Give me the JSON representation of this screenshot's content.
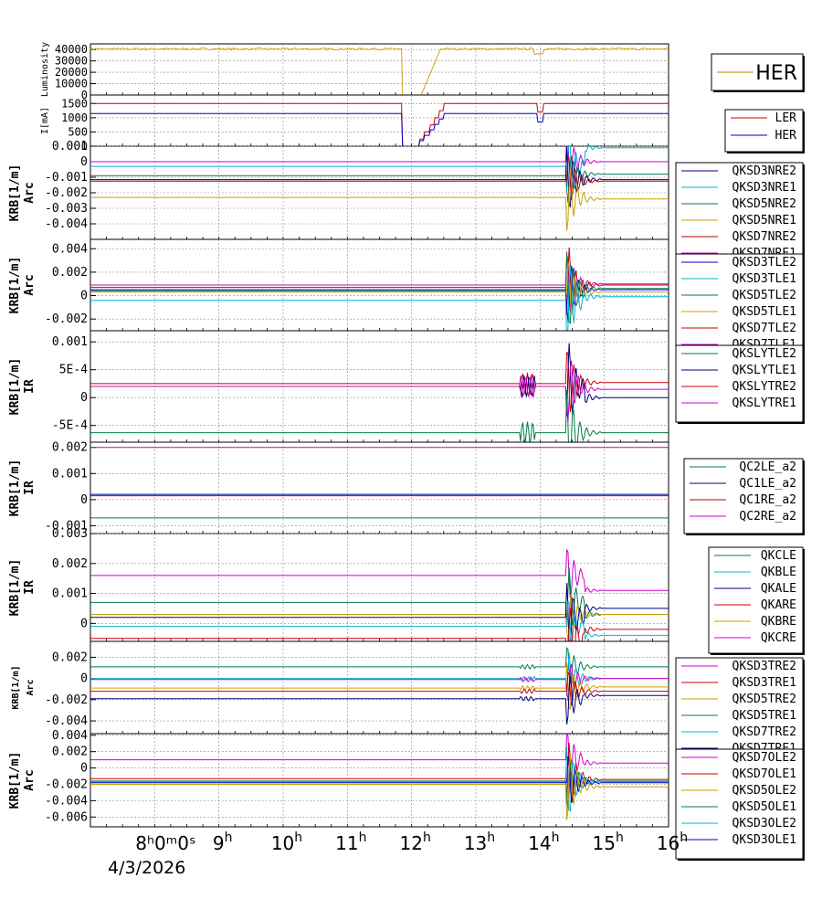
{
  "chart_data": {
    "type": "line",
    "x_axis": {
      "ticks": [
        {
          "h": "8",
          "label": "8ʰ0ᵐ0ˢ",
          "sup": "h"
        },
        {
          "h": "9",
          "label": "9",
          "sup": "h"
        },
        {
          "h": "10",
          "label": "10",
          "sup": "h"
        },
        {
          "h": "11",
          "label": "11",
          "sup": "h"
        },
        {
          "h": "12",
          "label": "12",
          "sup": "h"
        },
        {
          "h": "13",
          "label": "13",
          "sup": "h"
        },
        {
          "h": "14",
          "label": "14",
          "sup": "h"
        },
        {
          "h": "15",
          "label": "15",
          "sup": "h"
        },
        {
          "h": "16",
          "label": "16",
          "sup": "h"
        }
      ],
      "date": "4/3/2026",
      "range_hours": [
        7.0,
        16.0
      ]
    },
    "panels": [
      {
        "id": "luminosity",
        "ylabel": "Luminosity",
        "yticks": [
          "40000",
          "30000",
          "20000",
          "10000",
          "0"
        ],
        "ylim": [
          0,
          45000
        ],
        "legend": [
          {
            "name": "HER",
            "color": "#d4a017"
          }
        ],
        "series": [
          {
            "name": "HER",
            "color": "#d4a017",
            "pattern": "lumi",
            "base": 40500
          }
        ]
      },
      {
        "id": "current",
        "ylabel": "I[mA]",
        "yticks": [
          "1500",
          "1000",
          "500",
          "0"
        ],
        "ylim": [
          0,
          1800
        ],
        "legend": [
          {
            "name": "LER",
            "color": "#cc0000"
          },
          {
            "name": "HER",
            "color": "#0000cc"
          }
        ],
        "series": [
          {
            "name": "LER",
            "color": "#cc0000",
            "pattern": "current",
            "base": 1500
          },
          {
            "name": "HER",
            "color": "#0000cc",
            "pattern": "current",
            "base": 1150
          }
        ]
      },
      {
        "id": "arc1",
        "ylabel": "KRB[1/m]",
        "ylabel2": "Arc",
        "yticks": [
          "0.001",
          "0",
          "-0.001",
          "-0.002",
          "-0.003",
          "-0.004"
        ],
        "ylim": [
          -0.005,
          0.001
        ],
        "legend": [
          {
            "name": "QKSD3NRE2",
            "color": "#000080"
          },
          {
            "name": "QKSD3NRE1",
            "color": "#00b4d8"
          },
          {
            "name": "QKSD5NRE2",
            "color": "#007a4d"
          },
          {
            "name": "QKSD5NRE1",
            "color": "#c8a000"
          },
          {
            "name": "QKSD7NRE2",
            "color": "#b00000"
          },
          {
            "name": "QKSD7NRE1",
            "color": "#cc00cc"
          }
        ],
        "series": [
          {
            "color": "#cc00cc",
            "base": 0.0
          },
          {
            "color": "#00b4d8",
            "base": -0.0003
          },
          {
            "color": "#007a4d",
            "base": -0.0009
          },
          {
            "color": "#000080",
            "base": -0.00115
          },
          {
            "color": "#b00000",
            "base": -0.00125
          },
          {
            "color": "#c8a000",
            "base": -0.0023
          }
        ],
        "event": {
          "t": 14.45,
          "amp": 0.0022
        },
        "after_shift": [
          0.0,
          0.0012,
          0.0001,
          0.0,
          0.0,
          -0.0001
        ]
      },
      {
        "id": "arc2",
        "ylabel": "KRB[1/m]",
        "ylabel2": "Arc",
        "yticks": [
          "0.004",
          "0.002",
          "0",
          "-0.002"
        ],
        "ylim": [
          -0.003,
          0.0048
        ],
        "legend": [
          {
            "name": "QKSD3TLE2",
            "color": "#0000cc"
          },
          {
            "name": "QKSD3TLE1",
            "color": "#00b4d8"
          },
          {
            "name": "QKSD5TLE2",
            "color": "#007a4d"
          },
          {
            "name": "QKSD5TLE1",
            "color": "#c8a000"
          },
          {
            "name": "QKSD7TLE2",
            "color": "#cc0000"
          },
          {
            "name": "QKSD7TLE1",
            "color": "#cc00cc"
          }
        ],
        "series": [
          {
            "color": "#cc00cc",
            "base": 0.0009
          },
          {
            "color": "#cc0000",
            "base": 0.0007
          },
          {
            "color": "#0000cc",
            "base": 0.0005
          },
          {
            "color": "#007a4d",
            "base": 0.0004
          },
          {
            "color": "#c8a000",
            "base": 0.0003
          },
          {
            "color": "#00b4d8",
            "base": -0.0004
          }
        ],
        "event": {
          "t": 14.45,
          "amp": 0.0035
        },
        "after_shift": [
          0.0001,
          0.0002,
          0.0,
          0.0002,
          0.0,
          0.0003
        ]
      },
      {
        "id": "ir1",
        "ylabel": "KRB[1/m]",
        "ylabel2": "IR",
        "yticks": [
          "0.001",
          "5E-4",
          "0",
          "-5E-4"
        ],
        "ylim": [
          -0.0008,
          0.0012
        ],
        "legend": [
          {
            "name": "QKSLYTLE2",
            "color": "#007a4d"
          },
          {
            "name": "QKSLYTLE1",
            "color": "#000080"
          },
          {
            "name": "QKSLYTRE2",
            "color": "#cc0000"
          },
          {
            "name": "QKSLYTRE1",
            "color": "#cc00cc"
          }
        ],
        "series": [
          {
            "color": "#cc0000",
            "base": 0.00025
          },
          {
            "color": "#000080",
            "base": 0.0002
          },
          {
            "color": "#cc00cc",
            "base": 0.0002
          },
          {
            "color": "#007a4d",
            "base": -0.00063
          }
        ],
        "event": {
          "t": 14.45,
          "amp": 0.0008
        },
        "after_shift": [
          2e-05,
          -0.0002,
          -5e-05,
          0.0
        ],
        "pre_event": {
          "t": 13.8,
          "amp": 0.0002
        }
      },
      {
        "id": "ir2",
        "ylabel": "KRB[1/m]",
        "ylabel2": "IR",
        "yticks": [
          "0.002",
          "0.001",
          "0",
          "-0.001"
        ],
        "ylim": [
          -0.0013,
          0.0022
        ],
        "legend": [
          {
            "name": "QC2LE_a2",
            "color": "#007a4d"
          },
          {
            "name": "QC1LE_a2",
            "color": "#000080"
          },
          {
            "name": "QC1RE_a2",
            "color": "#b00000"
          },
          {
            "name": "QC2RE_a2",
            "color": "#cc00cc"
          }
        ],
        "series": [
          {
            "color": "#cc00cc",
            "base": 0.002
          },
          {
            "color": "#000080",
            "base": 0.0002
          },
          {
            "color": "#b00000",
            "base": 0.00015
          },
          {
            "color": "#007a4d",
            "base": -0.0007
          }
        ],
        "event": null
      },
      {
        "id": "ir3",
        "ylabel": "KRB[1/m]",
        "ylabel2": "IR",
        "yticks": [
          "0.003",
          "0.002",
          "0.001",
          "0"
        ],
        "ylim": [
          -0.0006,
          0.003
        ],
        "legend": [
          {
            "name": "QKCLE",
            "color": "#007a4d"
          },
          {
            "name": "QKBLE",
            "color": "#00b4d8"
          },
          {
            "name": "QKALE",
            "color": "#000080"
          },
          {
            "name": "QKARE",
            "color": "#cc0000"
          },
          {
            "name": "QKBRE",
            "color": "#c8a000"
          },
          {
            "name": "QKCRE",
            "color": "#cc00cc"
          }
        ],
        "series": [
          {
            "color": "#cc00cc",
            "base": 0.0016
          },
          {
            "color": "#007a4d",
            "base": 0.0007
          },
          {
            "color": "#c8a000",
            "base": 0.0003
          },
          {
            "color": "#000080",
            "base": 0.0002
          },
          {
            "color": "#00b4d8",
            "base": -0.0001
          },
          {
            "color": "#cc0000",
            "base": -0.0005
          }
        ],
        "event": {
          "t": 14.45,
          "amp": 0.0012
        },
        "after_shift": [
          -0.0005,
          -0.0004,
          0.0,
          0.0003,
          -0.0003,
          0.0003
        ]
      },
      {
        "id": "arc3",
        "ylabel": "KRB[1/m]",
        "ylabel2": "Arc",
        "yticks": [
          "0.002",
          "0",
          "-0.002",
          "-0.004"
        ],
        "ylim": [
          -0.0052,
          0.0035
        ],
        "legend": [
          {
            "name": "QKSD3TRE2",
            "color": "#cc00cc"
          },
          {
            "name": "QKSD3TRE1",
            "color": "#cc0000"
          },
          {
            "name": "QKSD5TRE2",
            "color": "#c8a000"
          },
          {
            "name": "QKSD5TRE1",
            "color": "#007a4d"
          },
          {
            "name": "QKSD7TRE2",
            "color": "#00b4d8"
          },
          {
            "name": "QKSD7TRE1",
            "color": "#000080"
          }
        ],
        "series": [
          {
            "color": "#007a4d",
            "base": 0.0011
          },
          {
            "color": "#00b4d8",
            "base": 0.0
          },
          {
            "color": "#cc00cc",
            "base": -0.0001
          },
          {
            "color": "#c8a000",
            "base": -0.0009
          },
          {
            "color": "#cc0000",
            "base": -0.0012
          },
          {
            "color": "#000080",
            "base": -0.0019
          }
        ],
        "event": {
          "t": 14.45,
          "amp": 0.0025
        },
        "after_shift": [
          0.0,
          0.0,
          0.0001,
          0.0001,
          0.0,
          0.0003
        ],
        "pre_event": {
          "t": 13.8,
          "amp": 0.0002
        }
      },
      {
        "id": "arc4",
        "ylabel": "KRB[1/m]",
        "ylabel2": "Arc",
        "yticks": [
          "0.004",
          "0.002",
          "0",
          "-0.002",
          "-0.004",
          "-0.006"
        ],
        "ylim": [
          -0.0072,
          0.0042
        ],
        "legend": [
          {
            "name": "QKSD7OLE2",
            "color": "#cc00cc"
          },
          {
            "name": "QKSD7OLE1",
            "color": "#cc0000"
          },
          {
            "name": "QKSD5OLE2",
            "color": "#c8a000"
          },
          {
            "name": "QKSD5OLE1",
            "color": "#007a4d"
          },
          {
            "name": "QKSD3OLE2",
            "color": "#00b4d8"
          },
          {
            "name": "QKSD3OLE1",
            "color": "#0000cc"
          }
        ],
        "series": [
          {
            "color": "#cc00cc",
            "base": 0.001
          },
          {
            "color": "#cc0000",
            "base": -0.0013
          },
          {
            "color": "#007a4d",
            "base": -0.0016
          },
          {
            "color": "#00b4d8",
            "base": -0.0017
          },
          {
            "color": "#0000cc",
            "base": -0.0018
          },
          {
            "color": "#c8a000",
            "base": -0.002
          }
        ],
        "event": {
          "t": 14.45,
          "amp": 0.0045
        },
        "after_shift": [
          -0.0004,
          -0.0001,
          0.0,
          0.0,
          0.0,
          -0.0003
        ]
      }
    ]
  }
}
